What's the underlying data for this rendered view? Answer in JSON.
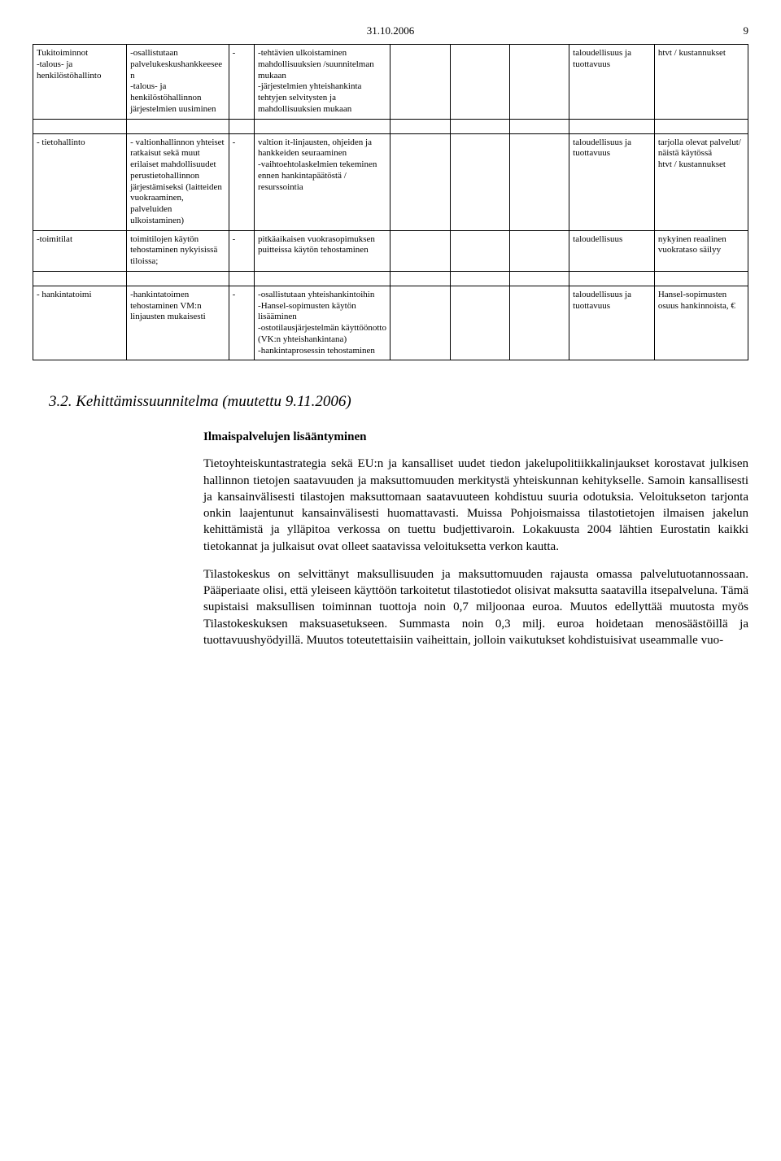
{
  "header": {
    "date": "31.10.2006",
    "pagenum": "9"
  },
  "table": {
    "rows": [
      {
        "c0": "Tukitoiminnot\n-talous- ja henkilöstöhallinto",
        "c1": "-osallistutaan palvelukeskushankkeeseen\n-talous- ja henkilöstöhallinnon järjestelmien uusiminen",
        "c2": "-",
        "c3": "-tehtävien ulkoistaminen mahdollisuuksien /suunnitelman mukaan\n-järjestelmien yhteishankinta tehtyjen selvitysten ja mahdollisuuksien mukaan",
        "c4": "",
        "c5": "",
        "c6": "",
        "c7": "taloudellisuus ja tuottavuus",
        "c8": "htvt / kustannukset"
      },
      {
        "c0": "- tietohallinto",
        "c1": "- valtionhallinnon yhteiset ratkaisut sekä muut erilaiset mahdollisuudet perustietohallinnon järjestämiseksi (laitteiden vuokraaminen, palveluiden ulkoistaminen)",
        "c2": "-",
        "c3": "valtion it-linjausten, ohjeiden ja hankkeiden seuraaminen\n-vaihtoehtolaskelmien tekeminen ennen hankintapäätöstä / resurssointia",
        "c4": "",
        "c5": "",
        "c6": "",
        "c7": "taloudellisuus ja tuottavuus",
        "c8": "tarjolla olevat palvelut/ näistä käytössä\nhtvt / kustannukset"
      },
      {
        "c0": "-toimitilat",
        "c1": "toimitilojen käytön tehostaminen nykyisissä tiloissa;",
        "c2": "-",
        "c3": "pitkäaikaisen vuokrasopimuksen puitteissa käytön tehostaminen",
        "c4": "",
        "c5": "",
        "c6": "",
        "c7": "taloudellisuus",
        "c8": "nykyinen reaalinen vuokrataso säilyy"
      },
      {
        "c0": "- hankintatoimi",
        "c1": "-hankintatoimen tehostaminen VM:n linjausten mukaisesti",
        "c2": "-",
        "c3": "-osallistutaan yhteishankintoihin\n-Hansel-sopimusten käytön lisääminen\n-ostotilausjärjestelmän käyttöönotto (VK:n yhteishankintana)\n-hankintaprosessin tehostaminen",
        "c4": "",
        "c5": "",
        "c6": "",
        "c7": "taloudellisuus ja tuottavuus",
        "c8": "Hansel-sopimusten osuus hankinnoista, €"
      }
    ]
  },
  "section": {
    "heading": "3.2. Kehittämissuunnitelma (muutettu 9.11.2006)",
    "subtitle": "Ilmaispalvelujen lisääntyminen",
    "p1": "Tietoyhteiskuntastrategia sekä EU:n ja kansalliset uudet tiedon jakelupolitiikkalinjaukset korostavat julkisen hallinnon tietojen saatavuuden ja maksuttomuuden merkitystä yhteiskunnan kehitykselle. Samoin kansallisesti ja kansainvälisesti tilastojen maksuttomaan saatavuuteen kohdistuu suuria odotuksia. Veloitukseton tarjonta onkin laajentunut kansainvälisesti huomattavasti. Muissa Pohjoismaissa tilastotietojen ilmaisen jakelun kehittämistä ja ylläpitoa verkossa on tuettu budjettivaroin. Lokakuusta 2004 lähtien Eurostatin kaikki tietokannat ja julkaisut ovat olleet saatavissa veloituksetta verkon kautta.",
    "p2": "Tilastokeskus on selvittänyt maksullisuuden ja maksuttomuuden rajausta omassa palvelutuotannossaan. Pääperiaate olisi, että yleiseen käyttöön tarkoitetut tilastotiedot olisivat maksutta saatavilla itsepalveluna. Tämä supistaisi maksullisen toiminnan tuottoja noin 0,7 miljoonaa euroa. Muutos edellyttää muutosta myös Tilastokeskuksen maksuasetukseen. Summasta noin 0,3 milj. euroa hoidetaan menosäästöillä ja tuottavuushyödyillä. Muutos toteutettaisiin vaiheittain, jolloin vaikutukset kohdistuisivat useammalle vuo-"
  }
}
